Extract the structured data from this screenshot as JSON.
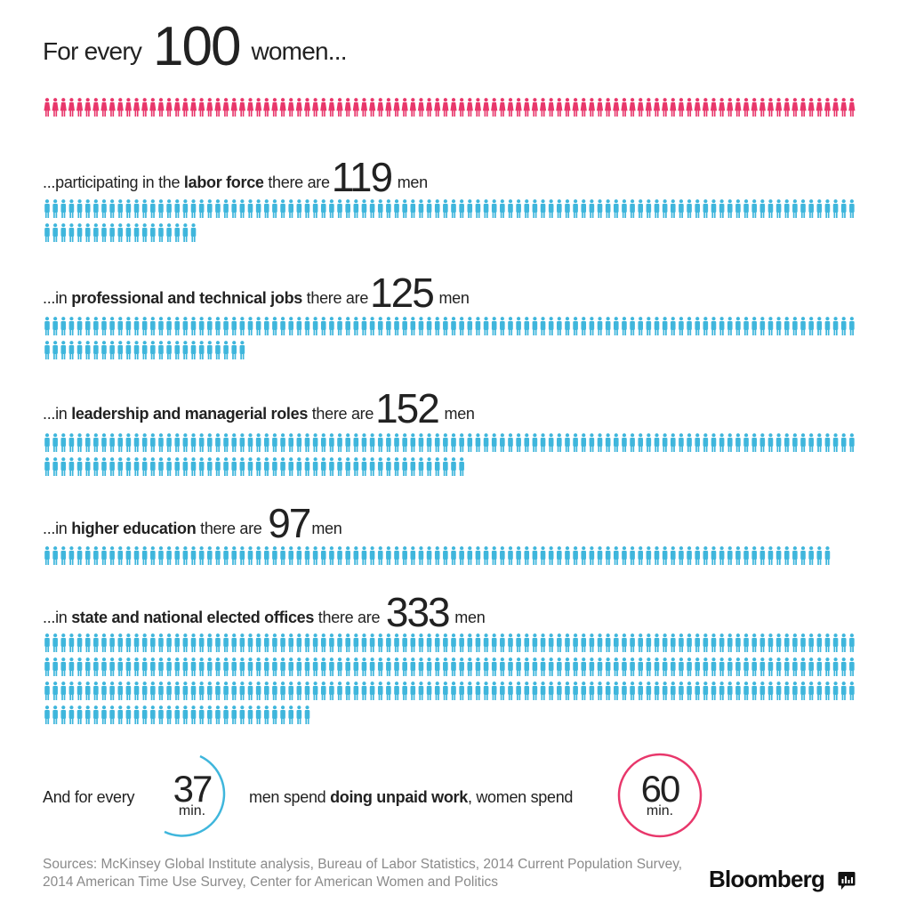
{
  "headline": {
    "pre": "For every",
    "number": "100",
    "post": "women..."
  },
  "rows": [
    {
      "pre": "...participating in the ",
      "bold": "labor force",
      "mid": " there are",
      "number": "119",
      "post": " men"
    },
    {
      "pre": " ...in ",
      "bold": "professional and technical jobs",
      "mid": " there are",
      "number": "125",
      "post": " men"
    },
    {
      "pre": " ...in ",
      "bold": "leadership and managerial roles",
      "mid": " there are",
      "number": "152",
      "post": " men"
    },
    {
      "pre": "...in ",
      "bold": "higher education",
      "mid": " there are ",
      "number": "97",
      "post": "men"
    },
    {
      "pre": "...in ",
      "bold": "state and national elected offices",
      "mid": " there are ",
      "number": "333",
      "post": " men"
    }
  ],
  "unpaid": {
    "pre": "And for every",
    "men_value": "37",
    "men_unit": "min.",
    "mid": "men spend ",
    "bold": "doing unpaid work",
    "post": ", women spend",
    "women_value": "60",
    "women_unit": "min."
  },
  "sources": "Sources:  McKinsey Global Institute analysis, Bureau of Labor Statistics, 2014 Current Population Survey, 2014 American Time Use Survey, Center for American Women and Politics",
  "brand": "Bloomberg",
  "icons": {
    "women": "woman-figure-icon",
    "men": "man-figure-icon",
    "brand": "bloomberg-terminal-icon"
  },
  "colors": {
    "women": "#e8376b",
    "men": "#3fb6dc",
    "text": "#222222",
    "muted": "#8a8a8a"
  },
  "chart_data": {
    "type": "pictogram",
    "title": "For every 100 women...",
    "categories": [
      "women (baseline)",
      "labor force",
      "professional and technical jobs",
      "leadership and managerial roles",
      "higher education",
      "state and national elected offices"
    ],
    "series": [
      {
        "values": [
          100,
          119,
          125,
          152,
          97,
          333
        ]
      }
    ],
    "unpaid_work_minutes": {
      "men": 37,
      "women": 60
    }
  }
}
